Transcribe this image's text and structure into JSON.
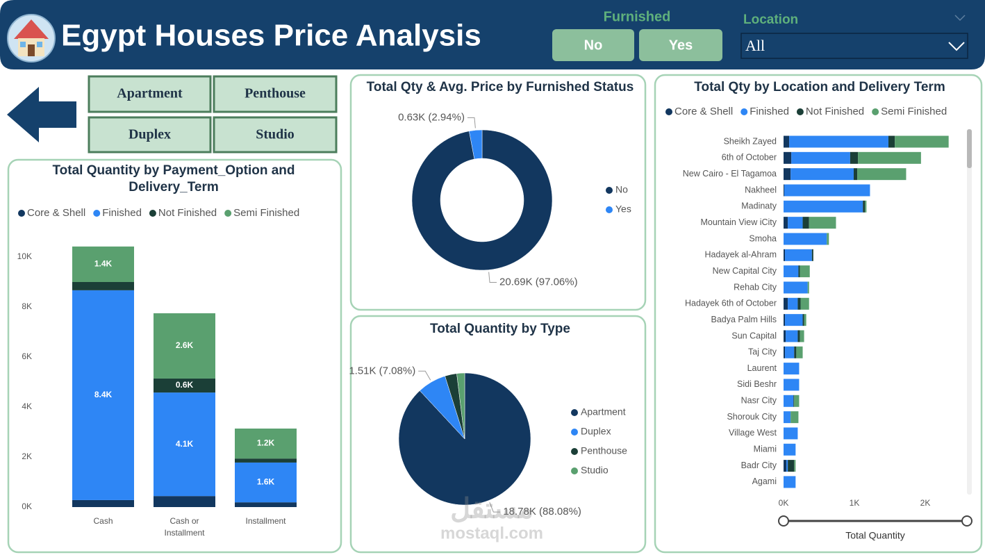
{
  "header": {
    "title": "Egypt Houses Price Analysis"
  },
  "furnished_slicer": {
    "title": "Furnished",
    "options": [
      "No",
      "Yes"
    ]
  },
  "location_slicer": {
    "title": "Location",
    "selected": "All"
  },
  "type_buttons": [
    "Apartment",
    "Penthouse",
    "Duplex",
    "Studio"
  ],
  "watermark": {
    "arabic": "مستقل",
    "latin": "mostaql.com"
  },
  "chart_data": [
    {
      "type": "bar",
      "orientation": "vertical",
      "stacked": true,
      "title": "Total Quantity by Payment_Option and Delivery_Term",
      "categories": [
        "Cash",
        "Cash or Installment",
        "Installment"
      ],
      "series": [
        {
          "name": "Core & Shell",
          "color": "#12375f",
          "values": [
            280,
            440,
            190
          ]
        },
        {
          "name": "Finished",
          "color": "#2e86f5",
          "values": [
            8390,
            4140,
            1590
          ],
          "value_labels": [
            "8.4K",
            "4.1K",
            "1.6K"
          ]
        },
        {
          "name": "Not Finished",
          "color": "#1b3f37",
          "values": [
            330,
            560,
            160
          ],
          "value_labels": [
            null,
            "0.6K",
            null
          ]
        },
        {
          "name": "Semi Finished",
          "color": "#5aa06f",
          "values": [
            1420,
            2610,
            1200
          ],
          "value_labels": [
            "1.4K",
            "2.6K",
            "1.2K"
          ]
        }
      ],
      "ylim": [
        0,
        11000
      ],
      "yticks": [
        {
          "value": 0,
          "label": "0K"
        },
        {
          "value": 2000,
          "label": "2K"
        },
        {
          "value": 4000,
          "label": "4K"
        },
        {
          "value": 6000,
          "label": "6K"
        },
        {
          "value": 8000,
          "label": "8K"
        },
        {
          "value": 10000,
          "label": "10K"
        }
      ],
      "grid": false,
      "legend": "top"
    },
    {
      "type": "donut",
      "title": "Total Qty & Avg. Price by Furnished Status",
      "categories": [
        "No",
        "Yes"
      ],
      "values": [
        20690,
        630
      ],
      "value_labels": [
        "20.69K (97.06%)",
        "0.63K (2.94%)"
      ],
      "colors": [
        "#12375f",
        "#2e86f5"
      ],
      "legend": "right"
    },
    {
      "type": "pie",
      "title": "Total Quantity by Type",
      "categories": [
        "Apartment",
        "Duplex",
        "Penthouse",
        "Studio"
      ],
      "values": [
        18780,
        1510,
        620,
        412
      ],
      "value_labels": [
        "18.78K (88.08%)",
        "1.51K (7.08%)",
        null,
        null
      ],
      "colors": [
        "#12375f",
        "#2e86f5",
        "#1b3f37",
        "#5aa06f"
      ],
      "legend": "right"
    },
    {
      "type": "bar",
      "orientation": "horizontal",
      "stacked": true,
      "title": "Total Qty by Location and Delivery Term",
      "xlabel": "Total Quantity",
      "categories": [
        "Sheikh Zayed",
        "6th of October",
        "New Cairo - El Tagamoa",
        "Nakheel",
        "Madinaty",
        "Mountain View iCity",
        "Smoha",
        "Hadayek al-Ahram",
        "New Capital City",
        "Rehab City",
        "Hadayek 6th of October",
        "Badya Palm Hills",
        "Sun Capital",
        "Taj City",
        "Laurent",
        "Sidi Beshr",
        "Nasr City",
        "Shorouk City",
        "Village West",
        "Miami",
        "Badr City",
        "Agami"
      ],
      "series": [
        {
          "name": "Core & Shell",
          "color": "#12375f",
          "values": [
            80,
            110,
            100,
            10,
            0,
            60,
            0,
            20,
            0,
            0,
            60,
            20,
            30,
            20,
            0,
            0,
            0,
            0,
            0,
            0,
            40,
            0
          ]
        },
        {
          "name": "Finished",
          "color": "#2e86f5",
          "values": [
            1400,
            830,
            890,
            1210,
            1120,
            210,
            610,
            380,
            210,
            340,
            140,
            250,
            170,
            130,
            220,
            220,
            140,
            100,
            200,
            170,
            20,
            170
          ]
        },
        {
          "name": "Not Finished",
          "color": "#1b3f37",
          "values": [
            90,
            110,
            50,
            0,
            30,
            90,
            0,
            20,
            20,
            0,
            40,
            20,
            30,
            30,
            0,
            0,
            10,
            0,
            0,
            0,
            90,
            0
          ]
        },
        {
          "name": "Semi Finished",
          "color": "#5aa06f",
          "values": [
            760,
            890,
            690,
            0,
            20,
            380,
            30,
            0,
            140,
            20,
            120,
            30,
            60,
            90,
            0,
            0,
            70,
            110,
            0,
            0,
            20,
            0
          ]
        }
      ],
      "xlim": [
        0,
        2500
      ],
      "xticks": [
        {
          "value": 0,
          "label": "0K"
        },
        {
          "value": 1000,
          "label": "1K"
        },
        {
          "value": 2000,
          "label": "2K"
        }
      ],
      "grid": false,
      "legend": "top"
    }
  ]
}
